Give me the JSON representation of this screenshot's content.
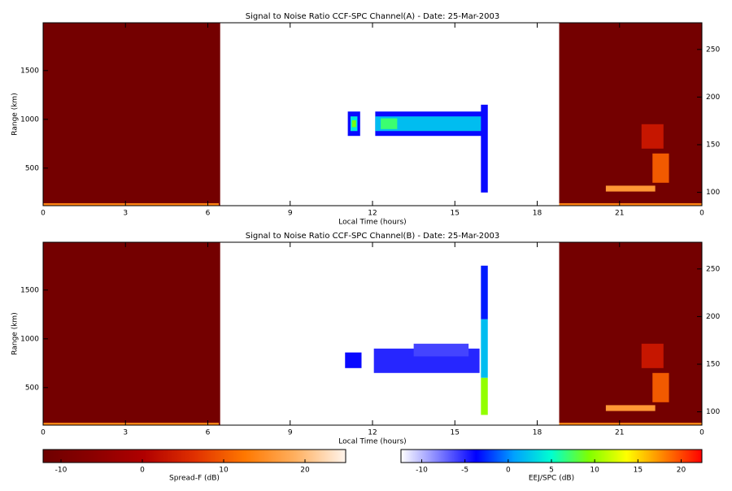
{
  "chart_data": [
    {
      "type": "heatmap",
      "title": "Signal to Noise Ratio CCF-SPC Channel(A) - Date: 25-Mar-2003",
      "x_label": "Local Time (hours)",
      "y_label": "Range (km)",
      "xlim": [
        0,
        24
      ],
      "xticks": [
        0,
        3,
        6,
        9,
        12,
        15,
        18,
        21,
        {
          "value": 24,
          "label": "0"
        }
      ],
      "ylim": [
        115,
        1990
      ],
      "yticks": [
        500,
        1000,
        1500
      ],
      "y2lim": [
        86,
        278
      ],
      "y2ticks": [
        100,
        150,
        200,
        250
      ],
      "blocks": [
        {
          "x0": 0,
          "x1": 6.45,
          "y0": 115,
          "y1": 1990,
          "value": -11,
          "scale": 0
        },
        {
          "x0": 18.8,
          "x1": 24,
          "y0": 115,
          "y1": 1990,
          "value": -11,
          "scale": 0
        },
        {
          "x0": 0,
          "x1": 6.4,
          "y0": 115,
          "y1": 140,
          "value": 14,
          "scale": 0
        },
        {
          "x0": 18.8,
          "x1": 24,
          "y0": 115,
          "y1": 140,
          "value": 14,
          "scale": 0
        },
        {
          "x0": 20.5,
          "x1": 22.3,
          "y0": 260,
          "y1": 320,
          "value": 16,
          "scale": 0
        },
        {
          "x0": 22.2,
          "x1": 22.8,
          "y0": 350,
          "y1": 650,
          "value": 10,
          "scale": 0
        },
        {
          "x0": 21.8,
          "x1": 22.6,
          "y0": 700,
          "y1": 950,
          "value": 3,
          "scale": 0
        },
        {
          "x0": 11.1,
          "x1": 11.55,
          "y0": 830,
          "y1": 1080,
          "value": -4,
          "scale": 1
        },
        {
          "x0": 11.2,
          "x1": 11.45,
          "y0": 880,
          "y1": 1030,
          "value": 4,
          "scale": 1
        },
        {
          "x0": 11.25,
          "x1": 11.4,
          "y0": 920,
          "y1": 990,
          "value": 9,
          "scale": 1
        },
        {
          "x0": 12.1,
          "x1": 16.1,
          "y0": 830,
          "y1": 1080,
          "value": -4,
          "scale": 1
        },
        {
          "x0": 12.1,
          "x1": 16.1,
          "y0": 880,
          "y1": 1030,
          "value": 2,
          "scale": 1
        },
        {
          "x0": 12.3,
          "x1": 12.9,
          "y0": 900,
          "y1": 1010,
          "value": 7,
          "scale": 1
        },
        {
          "x0": 15.95,
          "x1": 16.2,
          "y0": 250,
          "y1": 1150,
          "value": -4,
          "scale": 1
        }
      ]
    },
    {
      "type": "heatmap",
      "title": "Signal to Noise Ratio CCF-SPC Channel(B) - Date: 25-Mar-2003",
      "x_label": "Local Time (hours)",
      "y_label": "Range (km)",
      "xlim": [
        0,
        24
      ],
      "xticks": [
        0,
        3,
        6,
        9,
        12,
        15,
        18,
        21,
        {
          "value": 24,
          "label": "0"
        }
      ],
      "ylim": [
        115,
        1990
      ],
      "yticks": [
        500,
        1000,
        1500
      ],
      "y2lim": [
        86,
        278
      ],
      "y2ticks": [
        100,
        150,
        200,
        250
      ],
      "blocks": [
        {
          "x0": 0,
          "x1": 6.45,
          "y0": 115,
          "y1": 1990,
          "value": -11,
          "scale": 0
        },
        {
          "x0": 18.8,
          "x1": 24,
          "y0": 115,
          "y1": 1990,
          "value": -11,
          "scale": 0
        },
        {
          "x0": 0,
          "x1": 6.4,
          "y0": 115,
          "y1": 140,
          "value": 14,
          "scale": 0
        },
        {
          "x0": 18.8,
          "x1": 24,
          "y0": 115,
          "y1": 140,
          "value": 14,
          "scale": 0
        },
        {
          "x0": 20.5,
          "x1": 22.3,
          "y0": 260,
          "y1": 320,
          "value": 16,
          "scale": 0
        },
        {
          "x0": 22.2,
          "x1": 22.8,
          "y0": 350,
          "y1": 650,
          "value": 10,
          "scale": 0
        },
        {
          "x0": 21.8,
          "x1": 22.6,
          "y0": 700,
          "y1": 950,
          "value": 3,
          "scale": 0
        },
        {
          "x0": 11.0,
          "x1": 11.6,
          "y0": 700,
          "y1": 860,
          "value": -4,
          "scale": 1
        },
        {
          "x0": 12.05,
          "x1": 15.9,
          "y0": 650,
          "y1": 900,
          "value": -5,
          "scale": 1
        },
        {
          "x0": 13.5,
          "x1": 15.5,
          "y0": 820,
          "y1": 950,
          "value": -6,
          "scale": 1
        },
        {
          "x0": 15.95,
          "x1": 16.2,
          "y0": 1200,
          "y1": 1750,
          "value": -3,
          "scale": 1
        },
        {
          "x0": 15.95,
          "x1": 16.2,
          "y0": 600,
          "y1": 1200,
          "value": 2,
          "scale": 1
        },
        {
          "x0": 15.95,
          "x1": 16.2,
          "y0": 220,
          "y1": 600,
          "value": 10,
          "scale": 1
        }
      ]
    }
  ],
  "colorbars": [
    {
      "label": "Spread-F (dB)",
      "lim": [
        -12.2,
        25
      ],
      "ticks": [
        -10,
        0,
        10,
        20
      ],
      "colors": [
        "#6e0000",
        "#8b0000",
        "#b00000",
        "#e03000",
        "#ff7800",
        "#ffb060",
        "#fff4ec"
      ]
    },
    {
      "label": "EEJ/SPC (dB)",
      "lim": [
        -12.4,
        22.4
      ],
      "ticks": [
        -10,
        -5,
        0,
        5,
        10,
        15,
        20
      ],
      "colors": [
        "#ffffff",
        "#8080ff",
        "#0000ff",
        "#00a0ff",
        "#00ffd0",
        "#80ff00",
        "#ffff00",
        "#ff8000",
        "#ff0000"
      ]
    }
  ]
}
